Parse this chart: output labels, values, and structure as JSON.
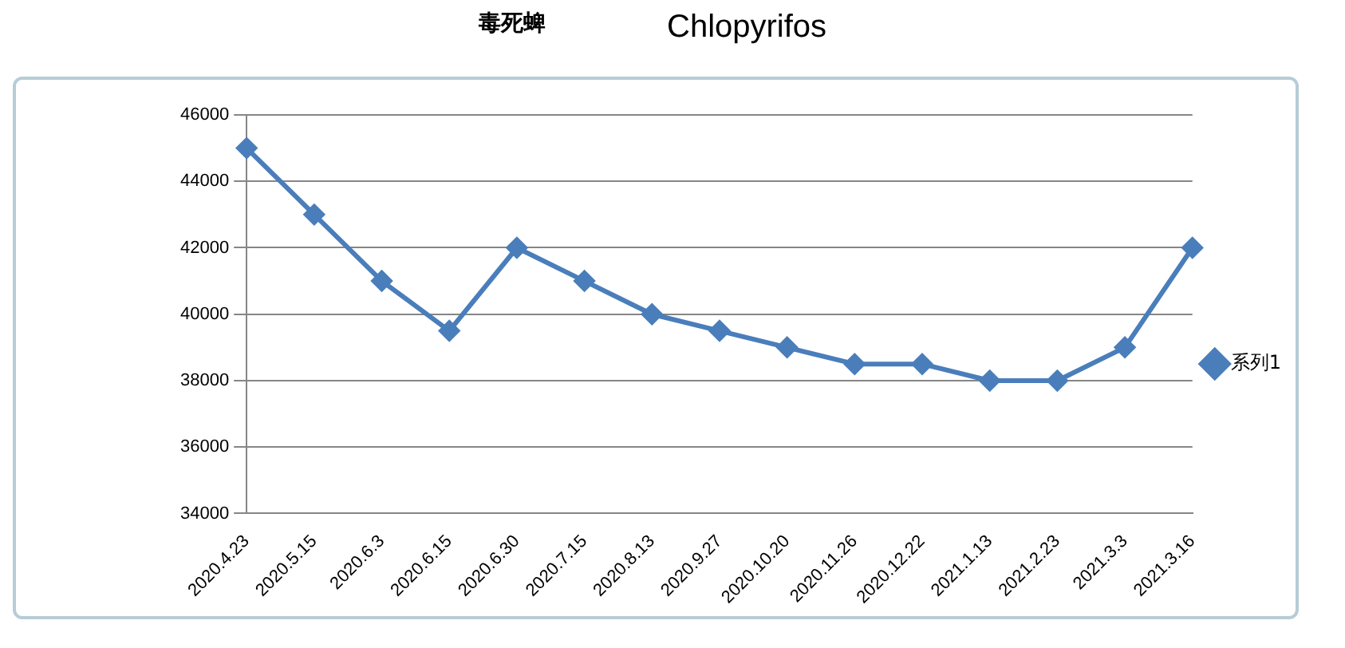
{
  "chart_data": {
    "type": "line",
    "title": "毒死蜱",
    "subtitle": "Chlopyrifos",
    "categories": [
      "2020.4.23",
      "2020.5.15",
      "2020.6.3",
      "2020.6.15",
      "2020.6.30",
      "2020.7.15",
      "2020.8.13",
      "2020.9.27",
      "2020.10.20",
      "2020.11.26",
      "2020.12.22",
      "2021.1.13",
      "2021.2.23",
      "2021.3.3",
      "2021.3.16"
    ],
    "series": [
      {
        "name": "系列1",
        "color": "#4a7ebb",
        "values": [
          45000,
          43000,
          41000,
          39500,
          42000,
          41000,
          40000,
          39500,
          39000,
          38500,
          38500,
          38000,
          38000,
          39000,
          42000
        ]
      }
    ],
    "ylim": [
      34000,
      46000
    ],
    "yticks": [
      34000,
      36000,
      38000,
      40000,
      42000,
      44000,
      46000
    ],
    "grid": "y",
    "legend": "right",
    "marker": "diamond",
    "line_style": "solid"
  }
}
